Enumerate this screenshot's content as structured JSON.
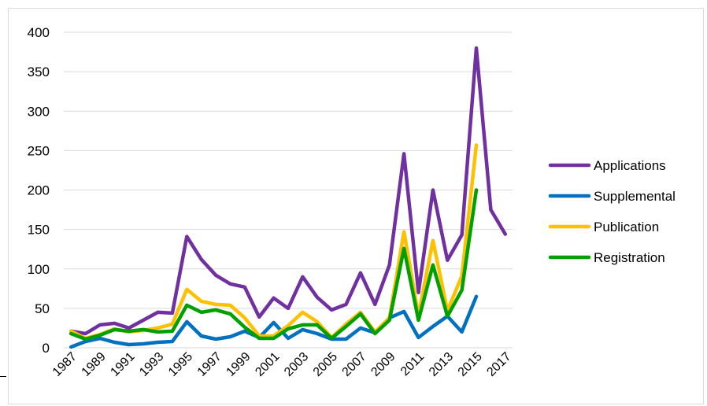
{
  "chart_data": {
    "type": "line",
    "title": "",
    "xlabel": "",
    "ylabel": "",
    "ylim": [
      0,
      400
    ],
    "yticks": [
      0,
      50,
      100,
      150,
      200,
      250,
      300,
      350,
      400
    ],
    "grid": "horizontal",
    "legend_position": "right",
    "x_tick_labels": [
      "1987",
      "1989",
      "1991",
      "1993",
      "1995",
      "1997",
      "1999",
      "2001",
      "2003",
      "2005",
      "2007",
      "2009",
      "2011",
      "2013",
      "2015",
      "2017"
    ],
    "x": [
      1987,
      1988,
      1989,
      1990,
      1991,
      1992,
      1993,
      1994,
      1995,
      1996,
      1997,
      1998,
      1999,
      2000,
      2001,
      2002,
      2003,
      2004,
      2005,
      2006,
      2007,
      2008,
      2009,
      2010,
      2011,
      2012,
      2013,
      2014,
      2015,
      2016,
      2017
    ],
    "series": [
      {
        "name": "Applications",
        "color": "#7030A0",
        "values": [
          21,
          18,
          29,
          31,
          25,
          35,
          45,
          44,
          141,
          112,
          92,
          81,
          77,
          39,
          63,
          50,
          90,
          64,
          48,
          55,
          95,
          55,
          105,
          246,
          70,
          200,
          111,
          143,
          380,
          175,
          144
        ]
      },
      {
        "name": "Supplemental",
        "color": "#0070C0",
        "values": [
          1,
          8,
          12,
          7,
          4,
          5,
          7,
          8,
          33,
          15,
          11,
          14,
          21,
          13,
          32,
          12,
          23,
          18,
          11,
          11,
          25,
          19,
          38,
          46,
          13,
          27,
          40,
          20,
          65,
          null,
          null
        ]
      },
      {
        "name": "Publication",
        "color": "#FFC000",
        "values": [
          21,
          12,
          17,
          24,
          20,
          22,
          25,
          30,
          74,
          59,
          55,
          54,
          38,
          15,
          15,
          28,
          45,
          33,
          13,
          30,
          45,
          20,
          38,
          147,
          41,
          136,
          47,
          91,
          257,
          null,
          null
        ]
      },
      {
        "name": "Registration",
        "color": "#00A000",
        "values": [
          18,
          11,
          16,
          23,
          21,
          23,
          20,
          21,
          54,
          45,
          48,
          43,
          26,
          12,
          12,
          24,
          29,
          29,
          12,
          27,
          43,
          18,
          35,
          126,
          35,
          105,
          40,
          73,
          200,
          null,
          null
        ]
      }
    ]
  }
}
